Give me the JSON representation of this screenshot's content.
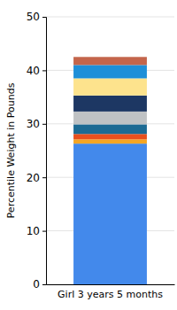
{
  "chart_data": {
    "type": "bar",
    "stacked": true,
    "grid": true,
    "ylabel": "Percentile Weight in Pounds",
    "categories": [
      "Girl 3 years 5 months"
    ],
    "series": [
      {
        "color": "#4389eb",
        "values": [
          26.3
        ]
      },
      {
        "color": "#f5a623",
        "values": [
          0.8
        ]
      },
      {
        "color": "#e8501e",
        "values": [
          1.0
        ]
      },
      {
        "color": "#1c6a93",
        "values": [
          1.8
        ]
      },
      {
        "color": "#bfc2c4",
        "values": [
          2.4
        ]
      },
      {
        "color": "#1d3763",
        "values": [
          3.0
        ]
      },
      {
        "color": "#fde38d",
        "values": [
          3.2
        ]
      },
      {
        "color": "#1e8fd8",
        "values": [
          2.5
        ]
      },
      {
        "color": "#c4654b",
        "values": [
          1.5
        ]
      }
    ],
    "ylim": [
      0,
      50
    ],
    "yticks": [
      0,
      10,
      20,
      30,
      40,
      50
    ]
  }
}
